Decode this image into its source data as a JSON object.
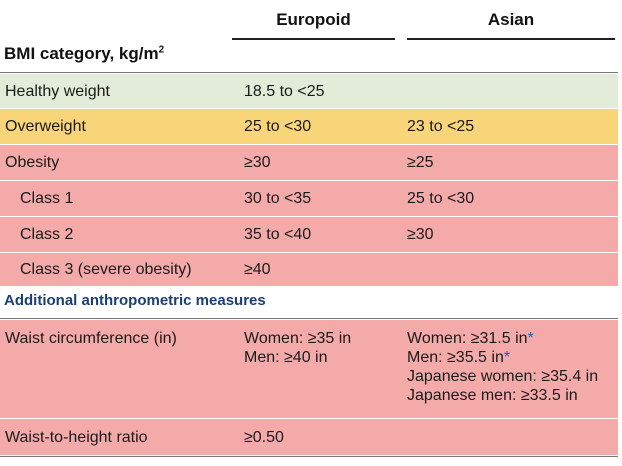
{
  "header": {
    "europoid": "Europoid",
    "asian": "Asian"
  },
  "bmi_section": {
    "title": "BMI category, kg/m",
    "superscript": "2"
  },
  "bmi_rows": [
    {
      "category": "Healthy weight",
      "europoid": "18.5 to <25",
      "asian": "",
      "color": "#e3ecd8"
    },
    {
      "category": "Overweight",
      "europoid": "25 to <30",
      "asian": "23 to <25",
      "color": "#f9d57a"
    },
    {
      "category": "Obesity",
      "europoid": "≥30",
      "asian": "≥25",
      "color": "#f5aaaa"
    },
    {
      "category": "Class 1",
      "europoid": "30 to <35",
      "asian": "25 to <30",
      "color": "#f5aaaa"
    },
    {
      "category": "Class 2",
      "europoid": "35 to <40",
      "asian": "≥30",
      "color": "#f5aaaa"
    },
    {
      "category": "Class 3 (severe obesity)",
      "europoid": "≥40",
      "asian": "",
      "color": "#f5aaaa"
    }
  ],
  "anthro_section": {
    "title": "Additional anthropometric measures"
  },
  "waist_circumference": {
    "label": "Waist circumference (in)",
    "europoid": [
      "Women: ≥35 in",
      "Men: ≥40 in"
    ],
    "asian": [
      {
        "text": "Women: ≥31.5 in",
        "star": "*"
      },
      {
        "text": "Men: ≥35.5 in",
        "star": "*"
      },
      {
        "text": "Japanese women: ≥35.4 in",
        "star": ""
      },
      {
        "text": "Japanese men: ≥33.5 in",
        "star": ""
      }
    ]
  },
  "waist_height": {
    "label": "Waist-to-height ratio",
    "europoid": "≥0.50",
    "asian": ""
  },
  "colors": {
    "healthy": "#e3ecd8",
    "overweight": "#f9d57a",
    "obesity": "#f5aaaa",
    "section_blue": "#1b3f73",
    "asterisk_blue": "#1f5fa8"
  }
}
